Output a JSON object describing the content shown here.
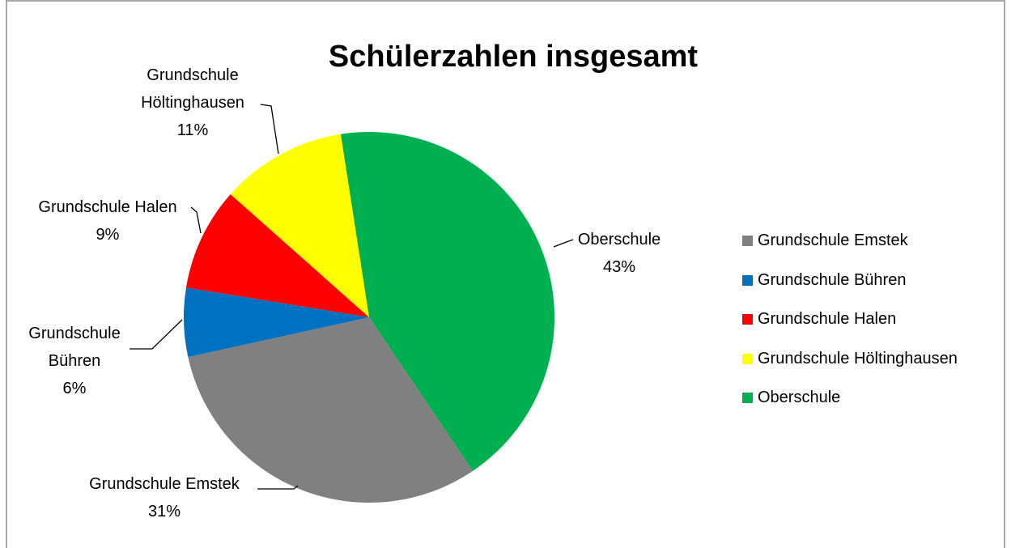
{
  "chart_data": {
    "type": "pie",
    "title": "Schülerzahlen insgesamt",
    "categories": [
      "Grundschule Emstek",
      "Grundschule Bühren",
      "Grundschule Halen",
      "Grundschule Höltinghausen",
      "Oberschule"
    ],
    "values": [
      31,
      6,
      9,
      11,
      43
    ],
    "value_labels": [
      "31%",
      "6%",
      "9%",
      "11%",
      "43%"
    ],
    "colors": [
      "#808080",
      "#0070c0",
      "#ff0000",
      "#ffff00",
      "#00b050"
    ],
    "legend": "right"
  }
}
